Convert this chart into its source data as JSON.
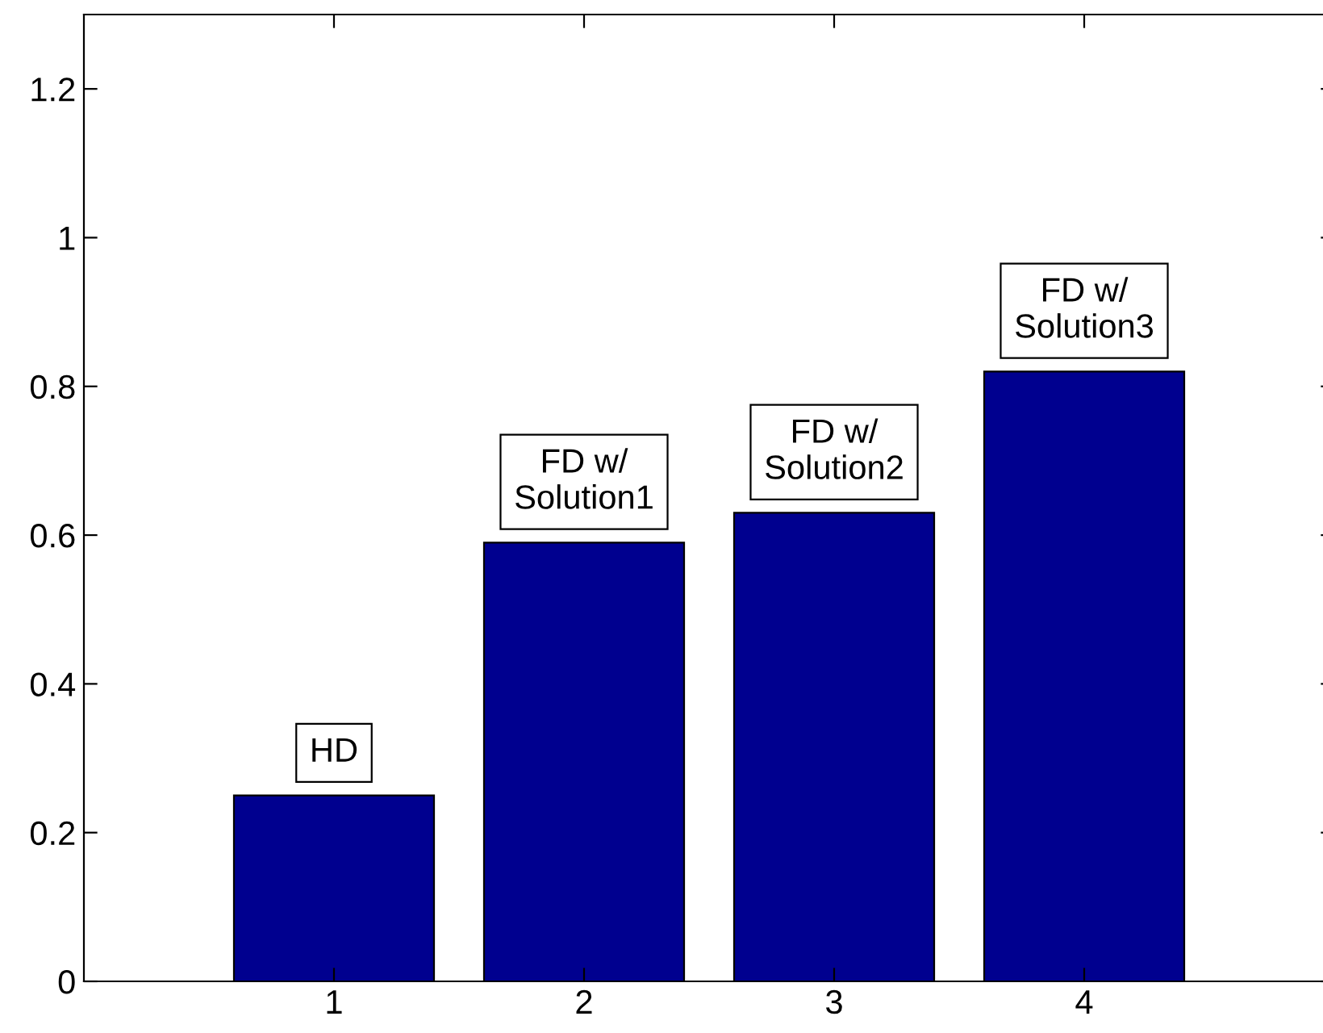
{
  "chart_data": {
    "type": "bar",
    "x": [
      1,
      2,
      3,
      4
    ],
    "values": [
      0.25,
      0.59,
      0.63,
      0.82
    ],
    "color": "#00008f",
    "xlim": [
      0,
      5
    ],
    "xticks": [
      1,
      2,
      3,
      4
    ],
    "ylim": [
      0,
      1.3
    ],
    "yticks": [
      0,
      0.2,
      0.4,
      0.6,
      0.8,
      1,
      1.2
    ],
    "annotations": [
      {
        "text": "HD",
        "x": 1,
        "y": 0.25
      },
      {
        "text": "FD w/\nSolution1",
        "x": 2,
        "y": 0.59
      },
      {
        "text": "FD w/\nSolution2",
        "x": 3,
        "y": 0.63
      },
      {
        "text": "FD w/\nSolution3",
        "x": 4,
        "y": 0.82
      }
    ],
    "grid": false,
    "legend": false
  }
}
